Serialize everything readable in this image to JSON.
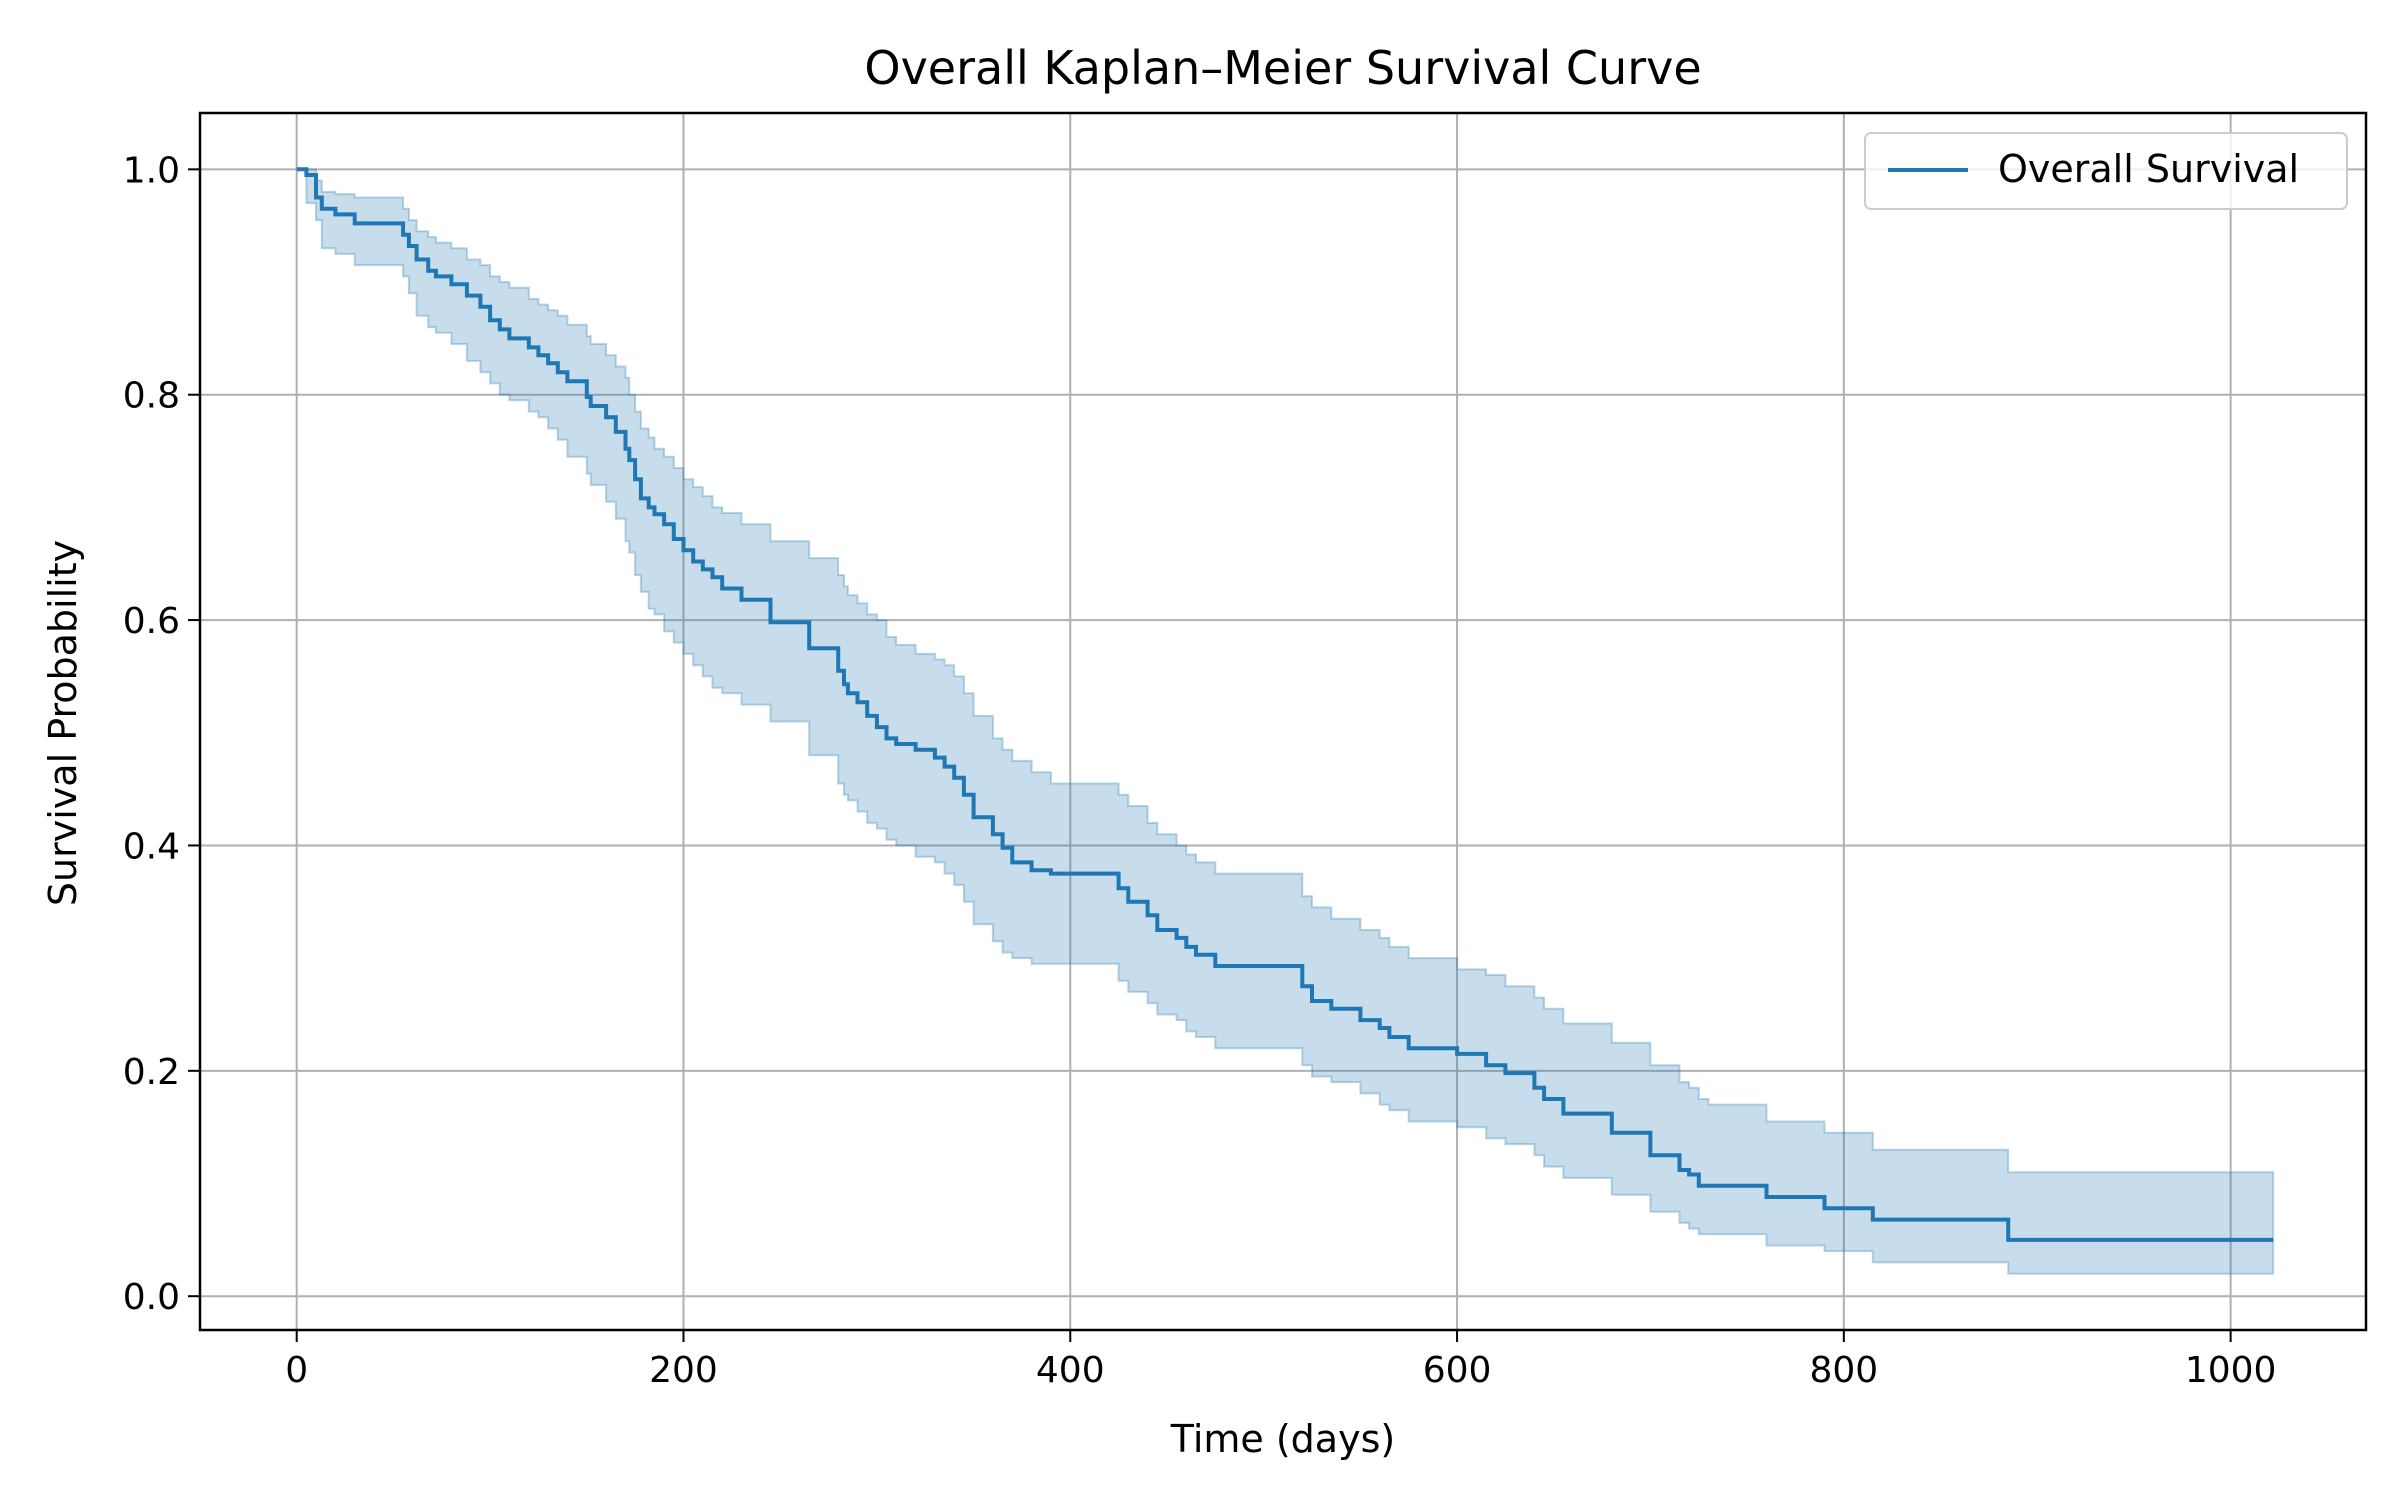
{
  "chart_data": {
    "type": "line",
    "title": "Overall Kaplan–Meier Survival Curve",
    "xlabel": "Time (days)",
    "ylabel": "Survival Probability",
    "xlim": [
      -50,
      1070
    ],
    "ylim": [
      -0.03,
      1.05
    ],
    "x_ticks": [
      0,
      200,
      400,
      600,
      800,
      1000
    ],
    "y_ticks": [
      0.0,
      0.2,
      0.4,
      0.6,
      0.8,
      1.0
    ],
    "x_tick_labels": [
      "0",
      "200",
      "400",
      "600",
      "800",
      "1000"
    ],
    "y_tick_labels": [
      "0.0",
      "0.2",
      "0.4",
      "0.6",
      "0.8",
      "1.0"
    ],
    "grid": true,
    "legend_position": "top-right",
    "colors": {
      "line": "#1f77b4",
      "band": "#1f77b4",
      "grid": "#b0b0b0",
      "axes": "#000000"
    },
    "series": [
      {
        "name": "Overall Survival",
        "step": "post",
        "x": [
          0,
          5,
          10,
          13,
          20,
          30,
          55,
          58,
          62,
          68,
          72,
          80,
          88,
          95,
          100,
          105,
          110,
          120,
          125,
          130,
          135,
          140,
          150,
          152,
          160,
          165,
          170,
          172,
          175,
          178,
          182,
          185,
          190,
          195,
          200,
          205,
          210,
          215,
          220,
          230,
          245,
          265,
          280,
          283,
          285,
          290,
          295,
          300,
          305,
          310,
          320,
          330,
          335,
          340,
          345,
          350,
          360,
          365,
          370,
          380,
          390,
          425,
          430,
          440,
          445,
          455,
          460,
          465,
          475,
          520,
          525,
          535,
          550,
          560,
          565,
          575,
          600,
          615,
          625,
          640,
          645,
          655,
          680,
          700,
          715,
          720,
          725,
          730,
          760,
          790,
          815,
          885,
          1022
        ],
        "y": [
          1.0,
          0.995,
          0.975,
          0.965,
          0.96,
          0.952,
          0.942,
          0.932,
          0.92,
          0.91,
          0.905,
          0.898,
          0.888,
          0.878,
          0.866,
          0.858,
          0.85,
          0.842,
          0.835,
          0.828,
          0.82,
          0.812,
          0.798,
          0.79,
          0.78,
          0.767,
          0.752,
          0.742,
          0.725,
          0.708,
          0.7,
          0.694,
          0.685,
          0.672,
          0.662,
          0.652,
          0.645,
          0.638,
          0.628,
          0.618,
          0.598,
          0.575,
          0.555,
          0.543,
          0.535,
          0.527,
          0.515,
          0.505,
          0.495,
          0.49,
          0.485,
          0.478,
          0.47,
          0.46,
          0.445,
          0.425,
          0.41,
          0.398,
          0.385,
          0.378,
          0.375,
          0.362,
          0.35,
          0.338,
          0.325,
          0.318,
          0.31,
          0.303,
          0.293,
          0.275,
          0.262,
          0.255,
          0.245,
          0.238,
          0.23,
          0.22,
          0.215,
          0.205,
          0.198,
          0.185,
          0.175,
          0.162,
          0.145,
          0.125,
          0.112,
          0.108,
          0.098,
          0.098,
          0.088,
          0.078,
          0.068,
          0.05,
          0.05
        ],
        "ci_lower": [
          1.0,
          0.97,
          0.955,
          0.93,
          0.925,
          0.915,
          0.905,
          0.89,
          0.87,
          0.86,
          0.855,
          0.845,
          0.83,
          0.82,
          0.81,
          0.8,
          0.795,
          0.785,
          0.78,
          0.77,
          0.76,
          0.745,
          0.73,
          0.72,
          0.705,
          0.69,
          0.67,
          0.66,
          0.64,
          0.625,
          0.61,
          0.605,
          0.59,
          0.58,
          0.57,
          0.56,
          0.55,
          0.54,
          0.535,
          0.525,
          0.51,
          0.48,
          0.455,
          0.445,
          0.44,
          0.43,
          0.42,
          0.415,
          0.405,
          0.4,
          0.39,
          0.385,
          0.375,
          0.365,
          0.35,
          0.33,
          0.315,
          0.305,
          0.3,
          0.295,
          0.295,
          0.28,
          0.27,
          0.26,
          0.25,
          0.245,
          0.235,
          0.23,
          0.22,
          0.205,
          0.195,
          0.19,
          0.18,
          0.17,
          0.165,
          0.155,
          0.15,
          0.14,
          0.135,
          0.125,
          0.115,
          0.105,
          0.09,
          0.075,
          0.065,
          0.06,
          0.055,
          0.055,
          0.045,
          0.04,
          0.03,
          0.02,
          0.02
        ],
        "ci_upper": [
          1.0,
          1.0,
          0.99,
          0.98,
          0.978,
          0.975,
          0.965,
          0.955,
          0.945,
          0.94,
          0.935,
          0.93,
          0.92,
          0.915,
          0.905,
          0.9,
          0.895,
          0.885,
          0.88,
          0.875,
          0.87,
          0.862,
          0.852,
          0.845,
          0.835,
          0.825,
          0.815,
          0.8,
          0.785,
          0.77,
          0.762,
          0.752,
          0.745,
          0.735,
          0.725,
          0.718,
          0.71,
          0.7,
          0.695,
          0.685,
          0.67,
          0.655,
          0.64,
          0.63,
          0.622,
          0.615,
          0.605,
          0.6,
          0.585,
          0.578,
          0.57,
          0.565,
          0.56,
          0.55,
          0.535,
          0.515,
          0.495,
          0.485,
          0.475,
          0.465,
          0.455,
          0.445,
          0.435,
          0.42,
          0.41,
          0.4,
          0.392,
          0.385,
          0.375,
          0.355,
          0.345,
          0.335,
          0.325,
          0.318,
          0.31,
          0.3,
          0.29,
          0.285,
          0.275,
          0.265,
          0.255,
          0.242,
          0.225,
          0.205,
          0.19,
          0.185,
          0.175,
          0.17,
          0.155,
          0.145,
          0.13,
          0.11,
          0.11
        ]
      }
    ]
  }
}
